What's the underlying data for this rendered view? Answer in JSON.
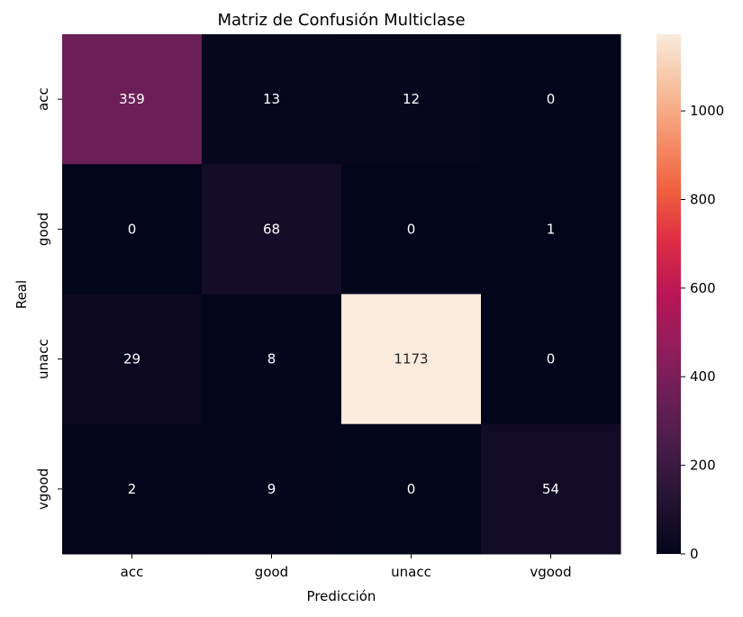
{
  "chart_data": {
    "type": "heatmap",
    "title": "Matriz de Confusión Multiclase",
    "xlabel": "Predicción",
    "ylabel": "Real",
    "x_categories": [
      "acc",
      "good",
      "unacc",
      "vgood"
    ],
    "y_categories": [
      "acc",
      "good",
      "unacc",
      "vgood"
    ],
    "values": [
      [
        359,
        13,
        12,
        0
      ],
      [
        0,
        68,
        0,
        1
      ],
      [
        29,
        8,
        1173,
        0
      ],
      [
        2,
        9,
        0,
        54
      ]
    ],
    "colormap": "rocket",
    "colorbar": {
      "min": 0,
      "max": 1173,
      "ticks": [
        0,
        200,
        400,
        600,
        800,
        1000
      ]
    },
    "grid": false
  }
}
